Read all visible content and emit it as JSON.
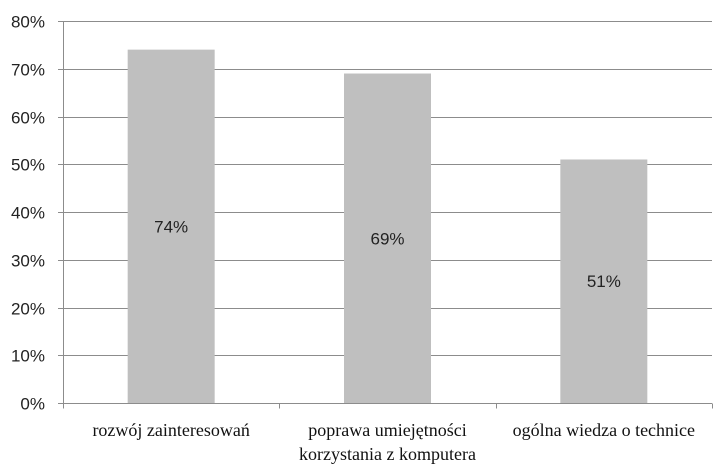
{
  "chart_data": {
    "type": "bar",
    "title": "",
    "xlabel": "",
    "ylabel": "",
    "categories": [
      [
        "rozwój zainteresowań"
      ],
      [
        "poprawa umiejętności",
        "korzystania z komputera"
      ],
      [
        "ogólna wiedza o technice"
      ]
    ],
    "values": [
      0.74,
      0.69,
      0.51
    ],
    "data_labels": [
      "74%",
      "69%",
      "51%"
    ],
    "ylim": [
      0,
      0.8
    ],
    "yticks": [
      0,
      0.1,
      0.2,
      0.3,
      0.4,
      0.5,
      0.6,
      0.7,
      0.8
    ],
    "ytick_labels": [
      "0%",
      "10%",
      "20%",
      "30%",
      "40%",
      "50%",
      "60%",
      "70%",
      "80%"
    ],
    "grid": true,
    "legend": "none",
    "bar_color": "#bfbfbf",
    "grid_color": "#8c8c8c"
  }
}
